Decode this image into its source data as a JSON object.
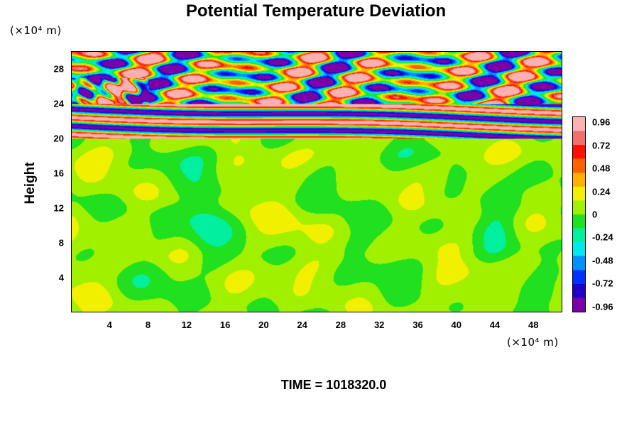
{
  "chart_data": {
    "type": "heatmap",
    "title": "Potential Temperature Deviation",
    "xlabel": "",
    "ylabel": "Height",
    "x_unit": "(×10⁴ m)",
    "y_unit": "(×10⁴ m)",
    "x_ticks": [
      4,
      8,
      12,
      16,
      20,
      24,
      28,
      32,
      36,
      40,
      44,
      48
    ],
    "y_ticks": [
      4,
      8,
      12,
      16,
      20,
      24,
      28
    ],
    "xlim": [
      0,
      51
    ],
    "ylim": [
      0,
      30
    ],
    "colorbar_ticks": [
      "0.96",
      "0.72",
      "0.48",
      "0.24",
      "0",
      "-0.24",
      "-0.48",
      "-0.72",
      "-0.96"
    ],
    "colorbar_range": [
      -1.02,
      1.02
    ],
    "colorbar_colors": [
      "#7a00a8",
      "#2000c8",
      "#0030ff",
      "#0090ff",
      "#00e8f0",
      "#00f0a0",
      "#20e020",
      "#a0f000",
      "#f0f000",
      "#ffb000",
      "#ff6000",
      "#ff1000",
      "#f07070",
      "#ffb0b0"
    ],
    "regions": {
      "stable_layer_top": 20,
      "wave_band": [
        20,
        24
      ],
      "noisy_layer": [
        24,
        30
      ],
      "lower_field_value": 0.05
    },
    "time_label": "TIME = 1018320.0"
  }
}
